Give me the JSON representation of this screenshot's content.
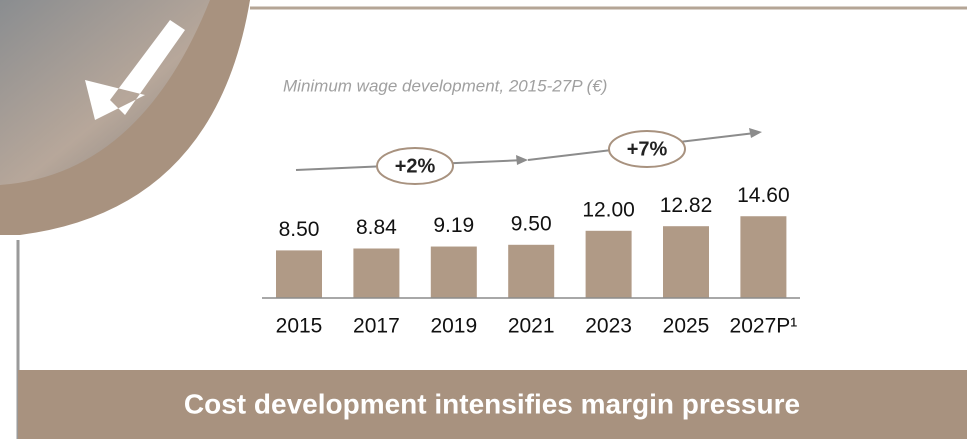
{
  "chart_data": {
    "type": "bar",
    "title": "Minimum wage development, 2015-27P (€)",
    "categories": [
      "2015",
      "2017",
      "2019",
      "2021",
      "2023",
      "2025",
      "2027P¹"
    ],
    "values": [
      8.5,
      8.84,
      9.19,
      9.5,
      12.0,
      12.82,
      14.6
    ],
    "value_labels": [
      "8.50",
      "8.84",
      "9.19",
      "9.50",
      "12.00",
      "12.82",
      "14.60"
    ],
    "color": "#b09a86",
    "annotations": [
      "+2%",
      "+7%"
    ]
  },
  "banner": "Cost development intensifies margin pressure"
}
